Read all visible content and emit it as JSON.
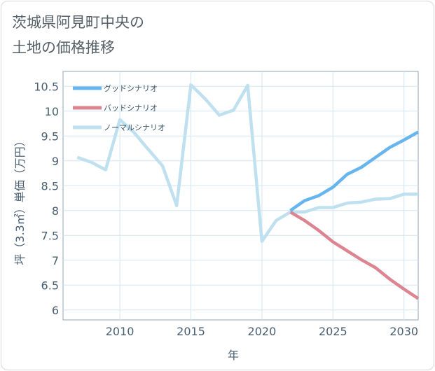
{
  "title": {
    "line1": "茨城県阿見町中央の",
    "line2": "土地の価格推移"
  },
  "chart_data": {
    "type": "line",
    "title": "茨城県阿見町中央の土地の価格推移",
    "xlabel": "年",
    "ylabel": "坪（3.3㎡）単価（万円）",
    "xlim": [
      2006,
      2031
    ],
    "ylim": [
      5.8,
      10.8
    ],
    "xticks": [
      2010,
      2015,
      2020,
      2025,
      2030
    ],
    "yticks": [
      6,
      6.5,
      7,
      7.5,
      8,
      8.5,
      9,
      9.5,
      10,
      10.5
    ],
    "ytick_labels": [
      "6",
      "6.5",
      "7",
      "7.5",
      "8",
      "8.5",
      "9",
      "9.5",
      "10",
      "10.5"
    ],
    "grid": true,
    "legend_position": "top-left",
    "series": [
      {
        "name": "グッドシナリオ",
        "color": "#66b5ee",
        "x": [
          2022,
          2023,
          2024,
          2025,
          2026,
          2027,
          2028,
          2029,
          2030,
          2031
        ],
        "values": [
          8.0,
          8.2,
          8.3,
          8.47,
          8.73,
          8.87,
          9.07,
          9.27,
          9.42,
          9.58
        ]
      },
      {
        "name": "バッドシナリオ",
        "color": "#dc8590",
        "x": [
          2022,
          2023,
          2024,
          2025,
          2026,
          2027,
          2028,
          2029,
          2030,
          2031
        ],
        "values": [
          7.97,
          7.8,
          7.6,
          7.37,
          7.19,
          7.01,
          6.85,
          6.62,
          6.42,
          6.23
        ]
      },
      {
        "name": "ノーマルシナリオ",
        "color": "#bfe0ef",
        "x": [
          2007,
          2008,
          2009,
          2010,
          2011,
          2012,
          2013,
          2014,
          2015,
          2016,
          2017,
          2018,
          2019,
          2020,
          2021,
          2022,
          2023,
          2024,
          2025,
          2026,
          2027,
          2028,
          2029,
          2030,
          2031
        ],
        "values": [
          9.07,
          8.97,
          8.82,
          9.83,
          9.57,
          9.23,
          8.9,
          8.1,
          10.53,
          10.25,
          9.92,
          10.02,
          10.52,
          7.38,
          7.8,
          7.97,
          7.97,
          8.06,
          8.06,
          8.15,
          8.17,
          8.23,
          8.24,
          8.33,
          8.33
        ]
      }
    ]
  }
}
